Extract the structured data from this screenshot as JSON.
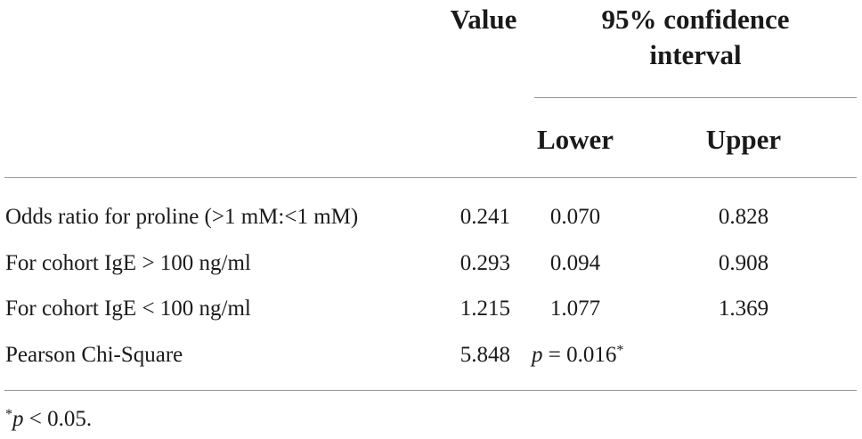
{
  "header": {
    "value": "Value",
    "ci": "95% confidence interval",
    "ci_line1": "95% confidence",
    "ci_line2": "interval",
    "lower": "Lower",
    "upper": "Upper"
  },
  "rows": [
    {
      "label": "Odds ratio for proline (>1 mM:<1 mM)",
      "value": "0.241",
      "lower": "0.070",
      "upper": "0.828"
    },
    {
      "label": "For cohort IgE > 100 ng/ml",
      "value": "0.293",
      "lower": "0.094",
      "upper": "0.908"
    },
    {
      "label": "For cohort IgE < 100 ng/ml",
      "value": "1.215",
      "lower": "1.077",
      "upper": "1.369"
    },
    {
      "label": "Pearson Chi-Square",
      "value": "5.848",
      "p_var": "p",
      "p_rest": " = 0.016",
      "p_star": "*"
    }
  ],
  "footnote": {
    "star": "*",
    "var": "p",
    "rest": " < 0.05."
  }
}
